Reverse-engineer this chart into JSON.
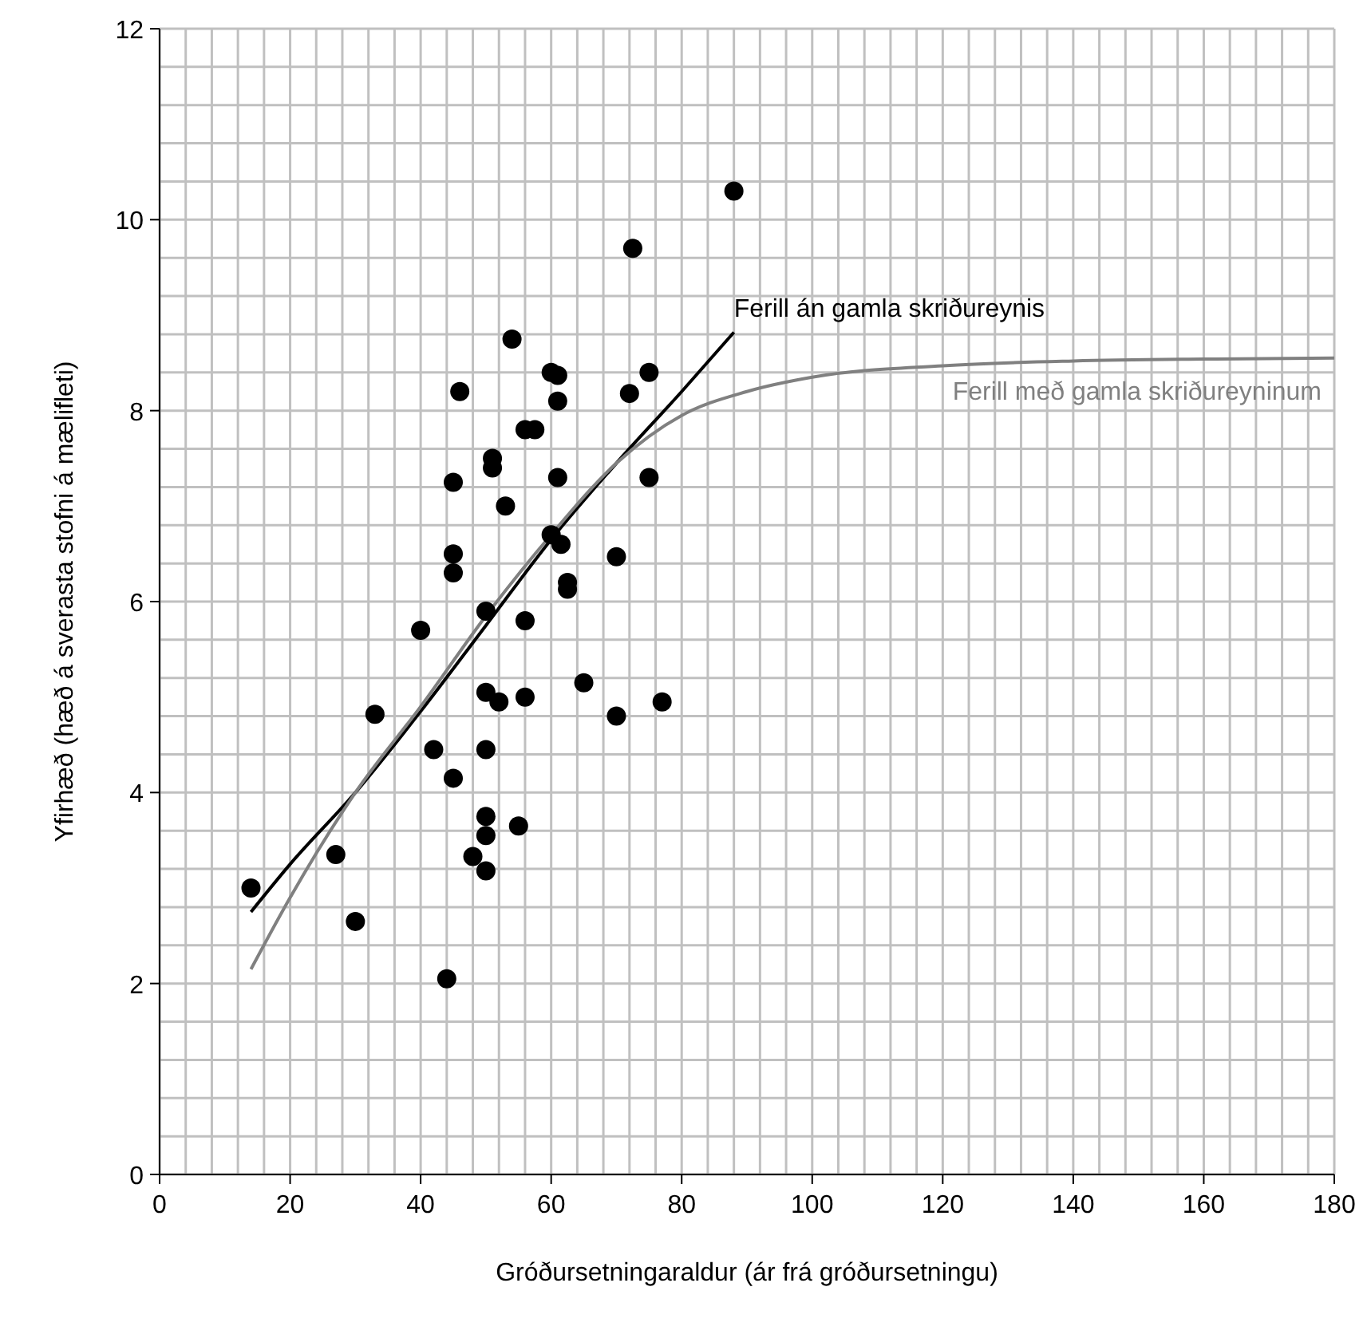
{
  "chart_data": {
    "type": "scatter",
    "xlabel": "Gróðursetningaraldur (ár frá gróðursetningu)",
    "ylabel": "Yfirhæð (hæð á sverasta stofni á mælifleti)",
    "xlim": [
      0,
      180
    ],
    "ylim": [
      0,
      12
    ],
    "xticks": [
      0,
      {
        "value": 4,
        "label": null
      },
      {
        "value": 8,
        "label": null
      },
      {
        "value": 12,
        "label": null
      },
      {
        "value": 16,
        "label": null
      },
      20,
      {
        "value": 24,
        "label": null
      },
      {
        "value": 28,
        "label": null
      },
      {
        "value": 32,
        "label": null
      },
      {
        "value": 36,
        "label": null
      },
      40,
      {
        "value": 44,
        "label": null
      },
      {
        "value": 48,
        "label": null
      },
      {
        "value": 52,
        "label": null
      },
      {
        "value": 56,
        "label": null
      },
      60,
      {
        "value": 64,
        "label": null
      },
      {
        "value": 68,
        "label": null
      },
      {
        "value": 72,
        "label": null
      },
      {
        "value": 76,
        "label": null
      },
      80,
      {
        "value": 84,
        "label": null
      },
      {
        "value": 88,
        "label": null
      },
      {
        "value": 92,
        "label": null
      },
      {
        "value": 96,
        "label": null
      },
      100,
      {
        "value": 104,
        "label": null
      },
      {
        "value": 108,
        "label": null
      },
      {
        "value": 112,
        "label": null
      },
      {
        "value": 116,
        "label": null
      },
      120,
      {
        "value": 124,
        "label": null
      },
      {
        "value": 128,
        "label": null
      },
      {
        "value": 132,
        "label": null
      },
      {
        "value": 136,
        "label": null
      },
      140,
      {
        "value": 144,
        "label": null
      },
      {
        "value": 148,
        "label": null
      },
      {
        "value": 152,
        "label": null
      },
      {
        "value": 156,
        "label": null
      },
      160,
      {
        "value": 164,
        "label": null
      },
      {
        "value": 168,
        "label": null
      },
      {
        "value": 172,
        "label": null
      },
      {
        "value": 176,
        "label": null
      },
      180
    ],
    "yticks": [
      0,
      {
        "value": 0.4,
        "label": null
      },
      {
        "value": 0.8,
        "label": null
      },
      {
        "value": 1.2,
        "label": null
      },
      {
        "value": 1.6,
        "label": null
      },
      2,
      {
        "value": 2.4,
        "label": null
      },
      {
        "value": 2.8,
        "label": null
      },
      {
        "value": 3.2,
        "label": null
      },
      {
        "value": 3.6,
        "label": null
      },
      4,
      {
        "value": 4.4,
        "label": null
      },
      {
        "value": 4.8,
        "label": null
      },
      {
        "value": 5.2,
        "label": null
      },
      {
        "value": 5.6,
        "label": null
      },
      6,
      {
        "value": 6.4,
        "label": null
      },
      {
        "value": 6.8,
        "label": null
      },
      {
        "value": 7.2,
        "label": null
      },
      {
        "value": 7.6,
        "label": null
      },
      8,
      {
        "value": 8.4,
        "label": null
      },
      {
        "value": 8.8,
        "label": null
      },
      {
        "value": 9.2,
        "label": null
      },
      {
        "value": 9.6,
        "label": null
      },
      10,
      {
        "value": 10.4,
        "label": null
      },
      {
        "value": 10.8,
        "label": null
      },
      {
        "value": 11.2,
        "label": null
      },
      {
        "value": 11.6,
        "label": null
      },
      12
    ],
    "grid": true,
    "series": [
      {
        "color": "#000000",
        "marker": "circle",
        "x": [
          14,
          27,
          30,
          33,
          40,
          42,
          44,
          45,
          45,
          45,
          45,
          46,
          48,
          50,
          50,
          50,
          50,
          50,
          50,
          51,
          51,
          52,
          53,
          54,
          55,
          56,
          56,
          56,
          57.5,
          60,
          60,
          61,
          61,
          61,
          61.5,
          62.5,
          62.5,
          65,
          70,
          70,
          72,
          72.5,
          75,
          75,
          77,
          88
        ],
        "values": [
          3.0,
          3.35,
          2.65,
          4.82,
          5.7,
          4.45,
          2.05,
          7.25,
          6.5,
          6.3,
          4.15,
          8.2,
          3.33,
          5.9,
          5.05,
          4.45,
          3.75,
          3.55,
          3.18,
          7.5,
          7.4,
          4.95,
          7.0,
          8.75,
          3.65,
          7.8,
          5.8,
          5.0,
          7.8,
          8.4,
          6.7,
          8.37,
          8.1,
          7.3,
          6.6,
          6.2,
          6.13,
          5.15,
          6.47,
          4.8,
          8.18,
          9.7,
          8.4,
          7.3,
          4.95,
          10.3
        ]
      },
      {
        "type": "line",
        "name": "Ferill án gamla skriðureynis",
        "color": "#000000",
        "marker": "none",
        "x": [
          14,
          20,
          30,
          40,
          50,
          60,
          70,
          80,
          88
        ],
        "values": [
          2.75,
          3.25,
          4.0,
          4.85,
          5.75,
          6.65,
          7.45,
          8.2,
          8.82
        ]
      },
      {
        "type": "line",
        "name": "Ferill með gamla skriðureyninum",
        "color": "#808080",
        "marker": "none",
        "x": [
          14,
          20,
          30,
          40,
          50,
          60,
          70,
          80,
          90,
          100,
          120,
          140,
          160,
          180
        ],
        "values": [
          2.15,
          2.9,
          4.0,
          4.9,
          5.85,
          6.7,
          7.45,
          7.95,
          8.2,
          8.35,
          8.47,
          8.52,
          8.54,
          8.55
        ]
      }
    ]
  }
}
